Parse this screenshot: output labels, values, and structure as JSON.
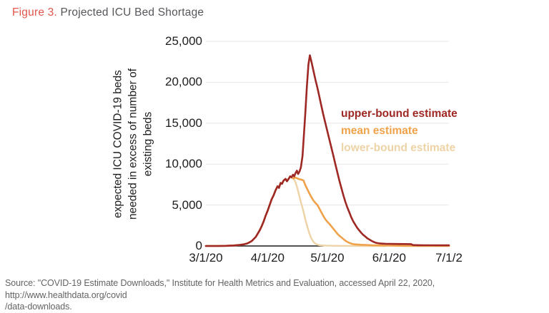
{
  "title": {
    "prefix": "Figure 3.",
    "text": " Projected ICU Bed Shortage"
  },
  "colors": {
    "figure_number_red": "#E2564C",
    "title_gray": "#54565B",
    "tick_text": "#1D1D1F",
    "gridline": "#E7E7E7",
    "zero_axis": "#1A1A1A",
    "upper_bound": "#9E2824",
    "mean": "#F0A24A",
    "lower_bound": "#EDD3A6",
    "source_gray": "#636363"
  },
  "chart_data": {
    "type": "line",
    "title": "Projected ICU Bed Shortage",
    "xlabel": "",
    "ylabel": "expected ICU COVID-19 beds needed in excess of number of existing beds",
    "ylabel_lines": [
      "expected ICU COVID-19 beds",
      "needed in excess of number of",
      "existing beds"
    ],
    "x_unit": "days since 3/1/20",
    "xlim_days": [
      0,
      122
    ],
    "ylim": [
      0,
      25000
    ],
    "grid": "horizontal-light",
    "legend_position": "inside-right",
    "x_ticks": [
      {
        "label": "3/1/20",
        "day": 0
      },
      {
        "label": "4/1/20",
        "day": 31
      },
      {
        "label": "5/1/20",
        "day": 61
      },
      {
        "label": "6/1/20",
        "day": 92
      },
      {
        "label": "7/1/2",
        "day": 122
      }
    ],
    "y_ticks": [
      {
        "label": "0",
        "value": 0
      },
      {
        "label": "5,000",
        "value": 5000
      },
      {
        "label": "10,000",
        "value": 10000
      },
      {
        "label": "15,000",
        "value": 15000
      },
      {
        "label": "20,000",
        "value": 20000
      },
      {
        "label": "25,000",
        "value": 25000
      }
    ],
    "zero_axis_segment_days": [
      0,
      59
    ],
    "series": [
      {
        "name": "lower-bound estimate",
        "color": "#EDD3A6",
        "stroke_width": 2.4,
        "points": [
          [
            0,
            0
          ],
          [
            6,
            0
          ],
          [
            10,
            20
          ],
          [
            14,
            60
          ],
          [
            17,
            130
          ],
          [
            19,
            200
          ],
          [
            21,
            330
          ],
          [
            23,
            600
          ],
          [
            25,
            1100
          ],
          [
            26,
            1500
          ],
          [
            27,
            1900
          ],
          [
            28,
            2400
          ],
          [
            29,
            3000
          ],
          [
            30,
            3700
          ],
          [
            31,
            4300
          ],
          [
            32,
            5000
          ],
          [
            33,
            5700
          ],
          [
            34,
            6200
          ],
          [
            35,
            6800
          ],
          [
            36,
            7300
          ],
          [
            36.7,
            7100
          ],
          [
            37.5,
            7700
          ],
          [
            38.2,
            7600
          ],
          [
            39,
            8000
          ],
          [
            40,
            8200
          ],
          [
            40.7,
            7900
          ],
          [
            41.5,
            8200
          ],
          [
            42.3,
            8500
          ],
          [
            43,
            8400
          ],
          [
            44,
            8200
          ],
          [
            45,
            7800
          ],
          [
            46,
            7000
          ],
          [
            47,
            6000
          ],
          [
            48,
            5100
          ],
          [
            49,
            4200
          ],
          [
            50,
            3200
          ],
          [
            51,
            2300
          ],
          [
            52,
            1500
          ],
          [
            53,
            900
          ],
          [
            54,
            500
          ],
          [
            55,
            280
          ],
          [
            56,
            160
          ],
          [
            57,
            100
          ],
          [
            58,
            70
          ],
          [
            60,
            45
          ],
          [
            63,
            25
          ],
          [
            67,
            15
          ],
          [
            72,
            8
          ],
          [
            80,
            4
          ],
          [
            90,
            0
          ]
        ]
      },
      {
        "name": "mean estimate",
        "color": "#F0A24A",
        "stroke_width": 2.6,
        "points": [
          [
            0,
            0
          ],
          [
            6,
            0
          ],
          [
            10,
            20
          ],
          [
            14,
            60
          ],
          [
            17,
            130
          ],
          [
            19,
            200
          ],
          [
            21,
            330
          ],
          [
            23,
            600
          ],
          [
            25,
            1100
          ],
          [
            26,
            1500
          ],
          [
            27,
            1900
          ],
          [
            28,
            2400
          ],
          [
            29,
            3000
          ],
          [
            30,
            3700
          ],
          [
            31,
            4300
          ],
          [
            32,
            5000
          ],
          [
            33,
            5700
          ],
          [
            34,
            6200
          ],
          [
            35,
            6800
          ],
          [
            36,
            7300
          ],
          [
            36.7,
            7100
          ],
          [
            37.5,
            7700
          ],
          [
            38.2,
            7600
          ],
          [
            39,
            8000
          ],
          [
            40,
            8200
          ],
          [
            40.7,
            7900
          ],
          [
            41.5,
            8200
          ],
          [
            42.3,
            8500
          ],
          [
            43,
            8400
          ],
          [
            44,
            8250
          ],
          [
            45,
            8350
          ],
          [
            46,
            8250
          ],
          [
            47,
            8150
          ],
          [
            48,
            8100
          ],
          [
            49,
            8000
          ],
          [
            50,
            7400
          ],
          [
            51,
            6900
          ],
          [
            52,
            6400
          ],
          [
            53,
            5950
          ],
          [
            54,
            5550
          ],
          [
            55,
            5250
          ],
          [
            56,
            5000
          ],
          [
            57,
            4550
          ],
          [
            58,
            4100
          ],
          [
            59,
            3650
          ],
          [
            60,
            3250
          ],
          [
            61,
            2950
          ],
          [
            62,
            2700
          ],
          [
            63,
            2400
          ],
          [
            64,
            2100
          ],
          [
            65,
            1800
          ],
          [
            66,
            1500
          ],
          [
            67,
            1250
          ],
          [
            68,
            1050
          ],
          [
            69,
            850
          ],
          [
            70,
            650
          ],
          [
            71,
            500
          ],
          [
            72,
            380
          ],
          [
            73,
            290
          ],
          [
            74,
            230
          ],
          [
            76,
            180
          ],
          [
            78,
            150
          ],
          [
            80,
            130
          ],
          [
            83,
            100
          ],
          [
            86,
            75
          ],
          [
            89,
            55
          ],
          [
            92,
            40
          ],
          [
            96,
            25
          ],
          [
            100,
            12
          ],
          [
            106,
            5
          ],
          [
            114,
            2
          ],
          [
            122,
            0
          ]
        ]
      },
      {
        "name": "upper-bound estimate",
        "color": "#9E2824",
        "stroke_width": 2.6,
        "points": [
          [
            0,
            0
          ],
          [
            6,
            0
          ],
          [
            10,
            20
          ],
          [
            14,
            60
          ],
          [
            17,
            130
          ],
          [
            19,
            200
          ],
          [
            21,
            330
          ],
          [
            23,
            600
          ],
          [
            25,
            1100
          ],
          [
            26,
            1500
          ],
          [
            27,
            1900
          ],
          [
            28,
            2400
          ],
          [
            29,
            3000
          ],
          [
            30,
            3700
          ],
          [
            31,
            4300
          ],
          [
            32,
            5000
          ],
          [
            33,
            5700
          ],
          [
            34,
            6200
          ],
          [
            35,
            6800
          ],
          [
            36,
            7300
          ],
          [
            36.7,
            7100
          ],
          [
            37.5,
            7700
          ],
          [
            38.2,
            7600
          ],
          [
            39,
            8000
          ],
          [
            40,
            8200
          ],
          [
            40.7,
            7900
          ],
          [
            41.5,
            8200
          ],
          [
            42.3,
            8500
          ],
          [
            43,
            8400
          ],
          [
            43.7,
            8700
          ],
          [
            44.3,
            8500
          ],
          [
            45,
            8900
          ],
          [
            45.7,
            9200
          ],
          [
            46.3,
            8800
          ],
          [
            47,
            9100
          ],
          [
            47.7,
            9600
          ],
          [
            48.5,
            11000
          ],
          [
            49.2,
            13500
          ],
          [
            50,
            16500
          ],
          [
            50.7,
            19500
          ],
          [
            51.5,
            22200
          ],
          [
            52.2,
            23300
          ],
          [
            53,
            22500
          ],
          [
            54,
            21400
          ],
          [
            55,
            20300
          ],
          [
            56,
            19300
          ],
          [
            57,
            18200
          ],
          [
            58,
            17100
          ],
          [
            59,
            16000
          ],
          [
            60,
            15000
          ],
          [
            61,
            14000
          ],
          [
            62,
            13000
          ],
          [
            63,
            12000
          ],
          [
            64,
            11000
          ],
          [
            65,
            10000
          ],
          [
            66,
            9000
          ],
          [
            67,
            8000
          ],
          [
            68,
            7100
          ],
          [
            69,
            6200
          ],
          [
            70,
            5400
          ],
          [
            71,
            4700
          ],
          [
            72,
            4100
          ],
          [
            73,
            3500
          ],
          [
            74,
            3000
          ],
          [
            75,
            2600
          ],
          [
            76,
            2200
          ],
          [
            77,
            1900
          ],
          [
            78,
            1600
          ],
          [
            79,
            1350
          ],
          [
            80,
            1150
          ],
          [
            81,
            950
          ],
          [
            82,
            800
          ],
          [
            83,
            650
          ],
          [
            84,
            520
          ],
          [
            85,
            420
          ],
          [
            86,
            360
          ],
          [
            87,
            320
          ],
          [
            88,
            300
          ],
          [
            90,
            270
          ],
          [
            93,
            255
          ],
          [
            96,
            245
          ],
          [
            100,
            235
          ],
          [
            103,
            225
          ],
          [
            104,
            110
          ],
          [
            107,
            95
          ],
          [
            110,
            90
          ],
          [
            114,
            85
          ],
          [
            118,
            82
          ],
          [
            122,
            80
          ]
        ]
      }
    ]
  },
  "source": {
    "line1": "Source: \"COVID-19 Estimate Downloads,\" Institute for Health Metrics and Evaluation, accessed April 22, 2020, http://www.healthdata.org/covid",
    "line2": "/data-downloads."
  }
}
